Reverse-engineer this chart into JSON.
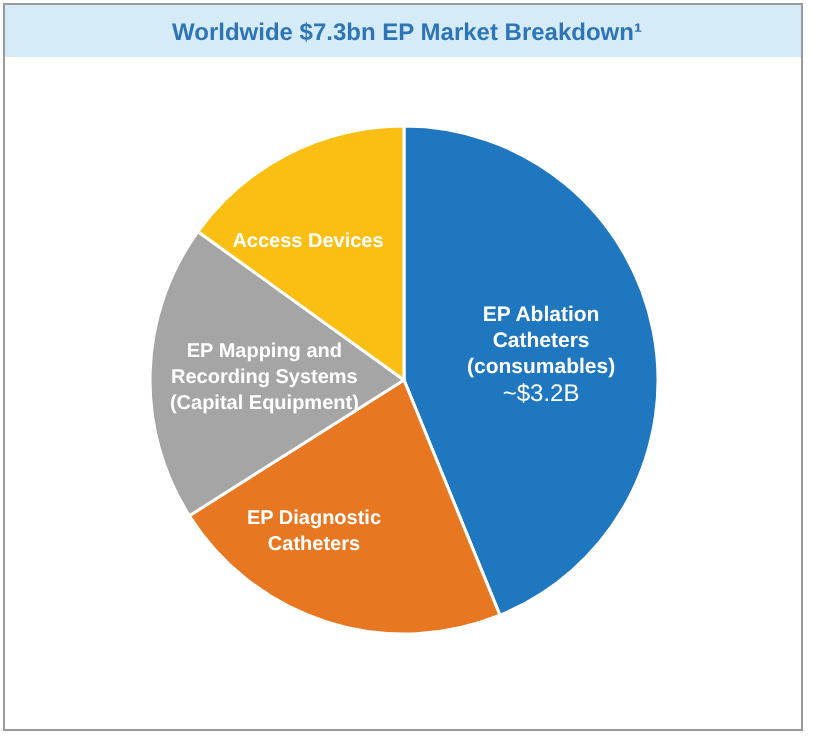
{
  "chart_data": {
    "type": "pie",
    "title": "Worldwide $7.3bn EP Market Breakdown¹",
    "categories": [
      "EP Ablation\nCatheters\n(consumables)",
      "EP Diagnostic\nCatheters",
      "EP Mapping and\nRecording Systems\n(Capital Equipment)",
      "Access Devices"
    ],
    "values": [
      3.2,
      1.62,
      1.38,
      1.1
    ],
    "colors": [
      "#1f77c0",
      "#e87722",
      "#a5a5a5",
      "#fbbf14"
    ],
    "value_labels": [
      "~$3.2B",
      null,
      null,
      null
    ]
  }
}
